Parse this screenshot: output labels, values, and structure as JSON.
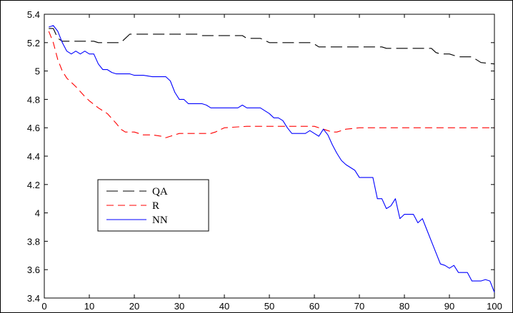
{
  "chart_data": {
    "type": "line",
    "title": "",
    "xlabel": "",
    "ylabel": "",
    "xlim": [
      0,
      100
    ],
    "ylim": [
      3.4,
      5.4
    ],
    "xticks": [
      0,
      10,
      20,
      30,
      40,
      50,
      60,
      70,
      80,
      90,
      100
    ],
    "yticks": [
      3.4,
      3.6,
      3.8,
      4,
      4.2,
      4.4,
      4.6,
      4.8,
      5,
      5.2,
      5.4
    ],
    "xtick_labels": [
      "0",
      "10",
      "20",
      "30",
      "40",
      "50",
      "60",
      "70",
      "80",
      "90",
      "100"
    ],
    "ytick_labels": [
      "3.4",
      "3.6",
      "3.8",
      "4",
      "4.2",
      "4.4",
      "4.6",
      "4.8",
      "5",
      "5.2",
      "5.4"
    ],
    "grid": false,
    "legend_position": "center-left",
    "series": [
      {
        "name": "QA",
        "color": "#000000",
        "dash": "long-dash",
        "x": [
          1,
          2,
          3,
          4,
          5,
          7,
          9,
          11,
          12,
          14,
          16,
          17,
          18,
          19,
          20,
          22,
          25,
          30,
          34,
          35,
          36,
          40,
          44,
          45,
          48,
          50,
          55,
          59,
          60,
          61,
          62,
          65,
          70,
          75,
          76,
          80,
          85,
          86,
          87,
          88,
          90,
          92,
          95,
          96,
          97,
          100
        ],
        "y": [
          5.3,
          5.3,
          5.23,
          5.21,
          5.21,
          5.21,
          5.21,
          5.21,
          5.2,
          5.2,
          5.2,
          5.2,
          5.23,
          5.26,
          5.26,
          5.26,
          5.26,
          5.26,
          5.26,
          5.25,
          5.25,
          5.25,
          5.25,
          5.23,
          5.23,
          5.2,
          5.2,
          5.2,
          5.19,
          5.17,
          5.17,
          5.17,
          5.17,
          5.17,
          5.16,
          5.16,
          5.16,
          5.16,
          5.13,
          5.12,
          5.12,
          5.1,
          5.1,
          5.08,
          5.06,
          5.05
        ]
      },
      {
        "name": "R",
        "color": "#ff0000",
        "dash": "dash",
        "x": [
          1,
          2,
          3,
          4,
          5,
          7,
          9,
          10,
          12,
          14,
          16,
          17,
          18,
          20,
          22,
          24,
          26,
          27,
          28,
          30,
          34,
          37,
          38,
          40,
          45,
          50,
          55,
          60,
          63,
          64,
          65,
          66,
          67,
          70,
          80,
          90,
          100
        ],
        "y": [
          5.28,
          5.2,
          5.08,
          5.0,
          4.95,
          4.89,
          4.82,
          4.79,
          4.74,
          4.7,
          4.63,
          4.59,
          4.57,
          4.57,
          4.55,
          4.55,
          4.54,
          4.53,
          4.54,
          4.56,
          4.56,
          4.56,
          4.57,
          4.6,
          4.61,
          4.61,
          4.61,
          4.61,
          4.58,
          4.57,
          4.57,
          4.58,
          4.59,
          4.6,
          4.6,
          4.6,
          4.6
        ]
      },
      {
        "name": "NN",
        "color": "#0000ff",
        "dash": "solid",
        "x": [
          1,
          2,
          3,
          4,
          5,
          6,
          7,
          8,
          9,
          10,
          11,
          12,
          13,
          14,
          15,
          16,
          17,
          18,
          19,
          20,
          22,
          24,
          26,
          27,
          28,
          29,
          30,
          31,
          32,
          35,
          36,
          37,
          40,
          42,
          43,
          44,
          45,
          46,
          48,
          49,
          50,
          51,
          52,
          53,
          54,
          55,
          57,
          58,
          59,
          60,
          61,
          62,
          63,
          64,
          65,
          66,
          67,
          68,
          69,
          70,
          71,
          72,
          73,
          74,
          75,
          76,
          77,
          78,
          79,
          80,
          81,
          82,
          83,
          84,
          85,
          86,
          87,
          88,
          89,
          90,
          91,
          92,
          93,
          94,
          95,
          96,
          97,
          98,
          99,
          100
        ],
        "y": [
          5.31,
          5.32,
          5.28,
          5.2,
          5.14,
          5.12,
          5.14,
          5.12,
          5.14,
          5.12,
          5.12,
          5.05,
          5.01,
          5.01,
          4.99,
          4.98,
          4.98,
          4.98,
          4.98,
          4.97,
          4.97,
          4.96,
          4.96,
          4.96,
          4.93,
          4.85,
          4.8,
          4.8,
          4.77,
          4.77,
          4.76,
          4.74,
          4.74,
          4.74,
          4.74,
          4.76,
          4.74,
          4.74,
          4.74,
          4.72,
          4.7,
          4.67,
          4.67,
          4.65,
          4.6,
          4.56,
          4.56,
          4.56,
          4.58,
          4.56,
          4.54,
          4.59,
          4.55,
          4.48,
          4.42,
          4.37,
          4.34,
          4.32,
          4.3,
          4.25,
          4.25,
          4.25,
          4.25,
          4.1,
          4.1,
          4.03,
          4.05,
          4.1,
          3.96,
          3.99,
          3.99,
          3.99,
          3.93,
          3.96,
          3.88,
          3.8,
          3.72,
          3.64,
          3.63,
          3.61,
          3.63,
          3.58,
          3.58,
          3.58,
          3.52,
          3.52,
          3.52,
          3.53,
          3.52,
          3.44
        ]
      }
    ]
  }
}
